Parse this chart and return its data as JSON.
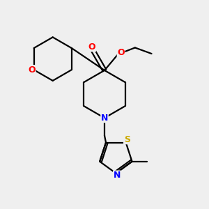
{
  "bg_color": "#efefef",
  "atom_colors": {
    "C": "#000000",
    "N": "#0000ff",
    "O": "#ff0000",
    "S": "#ccaa00",
    "H": "#000000"
  },
  "bond_color": "#000000",
  "bond_width": 1.6,
  "figsize": [
    3.0,
    3.0
  ],
  "dpi": 100,
  "xlim": [
    0,
    10
  ],
  "ylim": [
    0,
    10
  ]
}
